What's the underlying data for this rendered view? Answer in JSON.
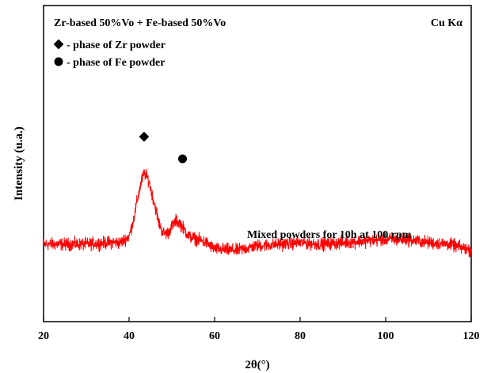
{
  "chart_data": {
    "type": "line",
    "title": "Zr-based 50%Vo + Fe-based 50%Vo",
    "radiation_label": "Cu Kα",
    "xlabel": "2θ(°)",
    "ylabel": "Intensity (u.a.)",
    "xlim": [
      20,
      120
    ],
    "ylim": [
      0,
      1
    ],
    "y_ticks_shown": false,
    "xticks": [
      20,
      40,
      60,
      80,
      100,
      120
    ],
    "xtick_labels": [
      "20",
      "40",
      "60",
      "80",
      "100",
      "120"
    ],
    "grid": false,
    "series": [
      {
        "name": "Mixed powders for 10h at 100 rpm",
        "color": "#ff0000",
        "noise_amplitude": 0.03,
        "x": [
          20,
          25,
          30,
          35,
          38,
          40,
          41,
          42,
          43,
          43.6,
          44.5,
          46,
          47,
          48,
          49,
          50,
          51,
          52,
          53,
          54,
          56,
          58,
          60,
          65,
          70,
          75,
          80,
          85,
          90,
          95,
          100,
          105,
          110,
          115,
          120
        ],
        "y": [
          0.245,
          0.245,
          0.245,
          0.25,
          0.25,
          0.27,
          0.32,
          0.39,
          0.45,
          0.47,
          0.45,
          0.37,
          0.31,
          0.28,
          0.28,
          0.3,
          0.32,
          0.31,
          0.29,
          0.27,
          0.26,
          0.25,
          0.23,
          0.225,
          0.24,
          0.245,
          0.25,
          0.245,
          0.25,
          0.255,
          0.26,
          0.26,
          0.25,
          0.245,
          0.225
        ]
      }
    ],
    "legend": [
      {
        "marker": "diamond",
        "label": "- phase of Zr powder"
      },
      {
        "marker": "circle",
        "label": "- phase of Fe powder"
      }
    ],
    "annotations": [
      {
        "marker": "diamond",
        "x": 43.5,
        "y": 0.585
      },
      {
        "marker": "circle",
        "x": 52.5,
        "y": 0.515
      }
    ]
  }
}
